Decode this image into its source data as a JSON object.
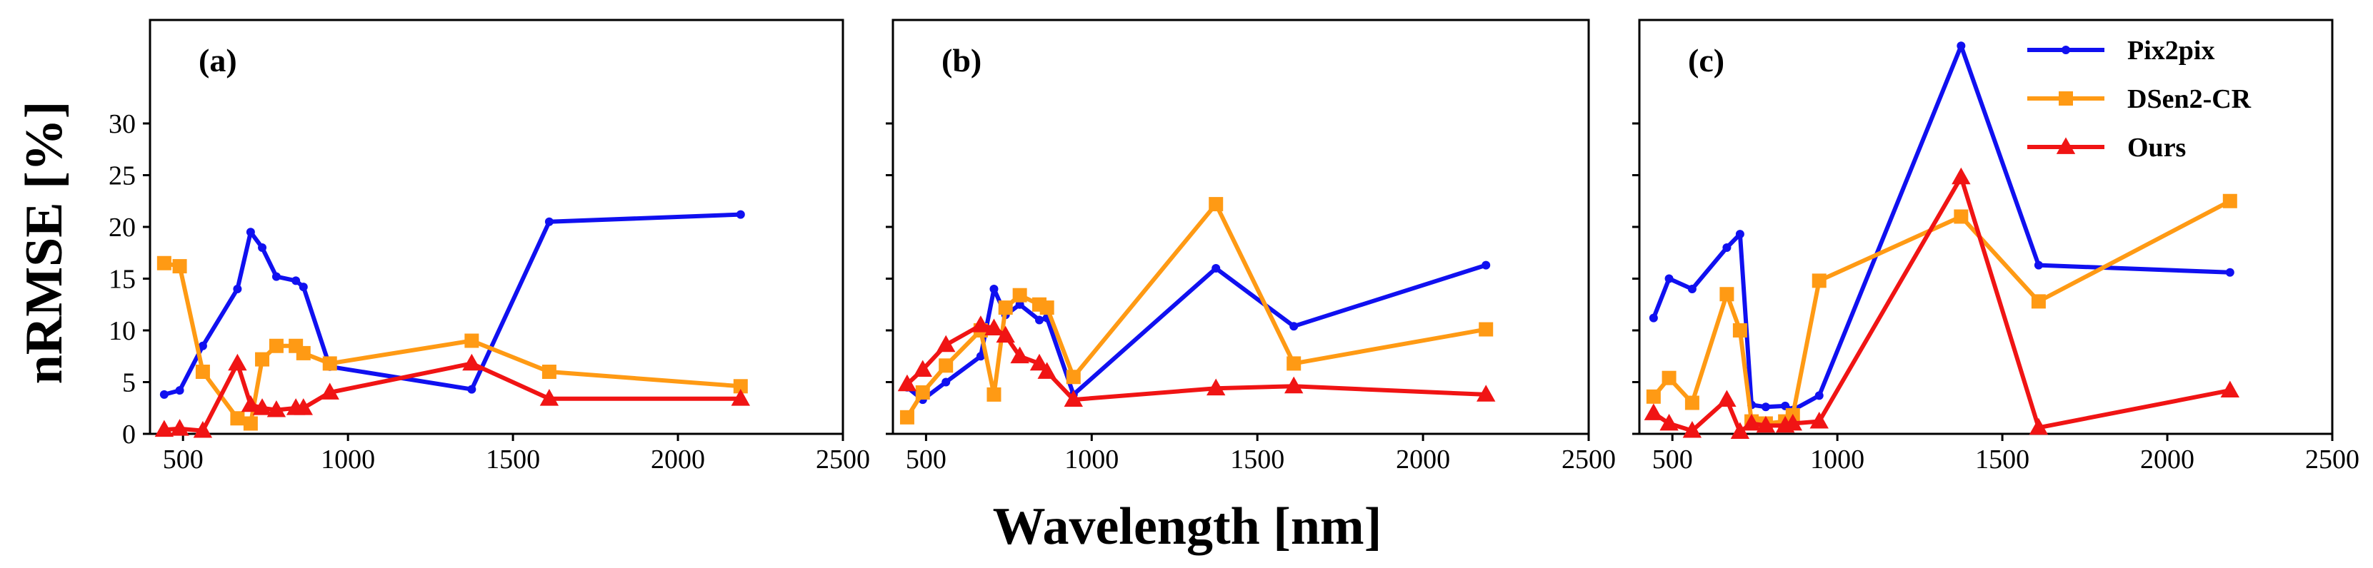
{
  "figure": {
    "xlabel": "Wavelength [nm]",
    "ylabel": "nRMSE [%]",
    "colors": {
      "Pix2pix": "#1010f0",
      "DSen2-CR": "#ff9a14",
      "Ours": "#f01414"
    },
    "markers": {
      "Pix2pix": "circle",
      "DSen2-CR": "square",
      "Ours": "triangle"
    }
  },
  "legend": {
    "placement": "top-right",
    "panel": "(c)",
    "entries": [
      "Pix2pix",
      "DSen2-CR",
      "Ours"
    ]
  },
  "chart_data": [
    {
      "type": "line",
      "panel_label": "(a)",
      "xlim": [
        400,
        2500
      ],
      "ylim": [
        0,
        40
      ],
      "xticks": [
        500,
        1000,
        1500,
        2000,
        2500
      ],
      "yticks": [
        0,
        5,
        10,
        15,
        20,
        25,
        30
      ],
      "series": [
        {
          "name": "Pix2pix",
          "x": [
            443,
            490,
            560,
            665,
            705,
            740,
            783,
            842,
            865,
            945,
            1375,
            1610,
            2190
          ],
          "y": [
            3.8,
            4.2,
            8.5,
            14.0,
            19.5,
            18.0,
            15.2,
            14.8,
            14.2,
            6.5,
            4.3,
            20.5,
            21.2
          ]
        },
        {
          "name": "DSen2-CR",
          "x": [
            443,
            490,
            560,
            665,
            705,
            740,
            783,
            842,
            865,
            945,
            1375,
            1610,
            2190
          ],
          "y": [
            16.5,
            16.2,
            6.0,
            1.5,
            1.0,
            7.2,
            8.5,
            8.5,
            7.8,
            6.8,
            9.0,
            6.0,
            4.6
          ]
        },
        {
          "name": "Ours",
          "x": [
            443,
            490,
            560,
            665,
            705,
            740,
            783,
            842,
            865,
            945,
            1375,
            1610,
            2190
          ],
          "y": [
            0.4,
            0.5,
            0.3,
            6.8,
            2.8,
            2.5,
            2.3,
            2.5,
            2.5,
            4.0,
            6.8,
            3.4,
            3.4
          ]
        }
      ]
    },
    {
      "type": "line",
      "panel_label": "(b)",
      "xlim": [
        400,
        2500
      ],
      "ylim": [
        0,
        40
      ],
      "xticks": [
        500,
        1000,
        1500,
        2000,
        2500
      ],
      "yticks": [
        0,
        5,
        10,
        15,
        20,
        25,
        30
      ],
      "series": [
        {
          "name": "Pix2pix",
          "x": [
            443,
            490,
            560,
            665,
            705,
            740,
            783,
            842,
            865,
            945,
            1375,
            1610,
            2190
          ],
          "y": [
            4.5,
            3.3,
            5.0,
            7.5,
            14.0,
            11.5,
            12.5,
            11.0,
            11.2,
            3.8,
            16.0,
            10.4,
            16.3
          ]
        },
        {
          "name": "DSen2-CR",
          "x": [
            443,
            490,
            560,
            665,
            705,
            740,
            783,
            842,
            865,
            945,
            1375,
            1610,
            2190
          ],
          "y": [
            1.6,
            4.0,
            6.6,
            10.0,
            3.8,
            12.2,
            13.4,
            12.5,
            12.2,
            5.5,
            22.2,
            6.8,
            10.1
          ]
        },
        {
          "name": "Ours",
          "x": [
            443,
            490,
            560,
            665,
            705,
            740,
            783,
            842,
            865,
            945,
            1375,
            1610,
            2190
          ],
          "y": [
            4.8,
            6.2,
            8.6,
            10.5,
            10.2,
            9.5,
            7.5,
            6.8,
            6.0,
            3.3,
            4.4,
            4.6,
            3.8
          ]
        }
      ]
    },
    {
      "type": "line",
      "panel_label": "(c)",
      "xlim": [
        400,
        2500
      ],
      "ylim": [
        0,
        40
      ],
      "xticks": [
        500,
        1000,
        1500,
        2000,
        2500
      ],
      "yticks": [
        0,
        5,
        10,
        15,
        20,
        25,
        30
      ],
      "series": [
        {
          "name": "Pix2pix",
          "x": [
            443,
            490,
            560,
            665,
            705,
            740,
            783,
            842,
            865,
            945,
            1375,
            1610,
            2190
          ],
          "y": [
            11.2,
            15.0,
            14.0,
            18.0,
            19.3,
            2.8,
            2.6,
            2.7,
            2.3,
            3.7,
            37.5,
            16.3,
            15.6
          ]
        },
        {
          "name": "DSen2-CR",
          "x": [
            443,
            490,
            560,
            665,
            705,
            740,
            783,
            842,
            865,
            945,
            1375,
            1610,
            2190
          ],
          "y": [
            3.6,
            5.4,
            3.0,
            13.5,
            10.0,
            1.2,
            1.0,
            1.2,
            1.8,
            14.8,
            21.0,
            12.8,
            22.5
          ]
        },
        {
          "name": "Ours",
          "x": [
            443,
            490,
            560,
            665,
            705,
            740,
            783,
            842,
            865,
            945,
            1375,
            1610,
            2190
          ],
          "y": [
            2.0,
            1.0,
            0.3,
            3.3,
            0.2,
            1.0,
            0.8,
            0.8,
            1.0,
            1.2,
            24.8,
            0.6,
            4.2
          ]
        }
      ]
    }
  ]
}
